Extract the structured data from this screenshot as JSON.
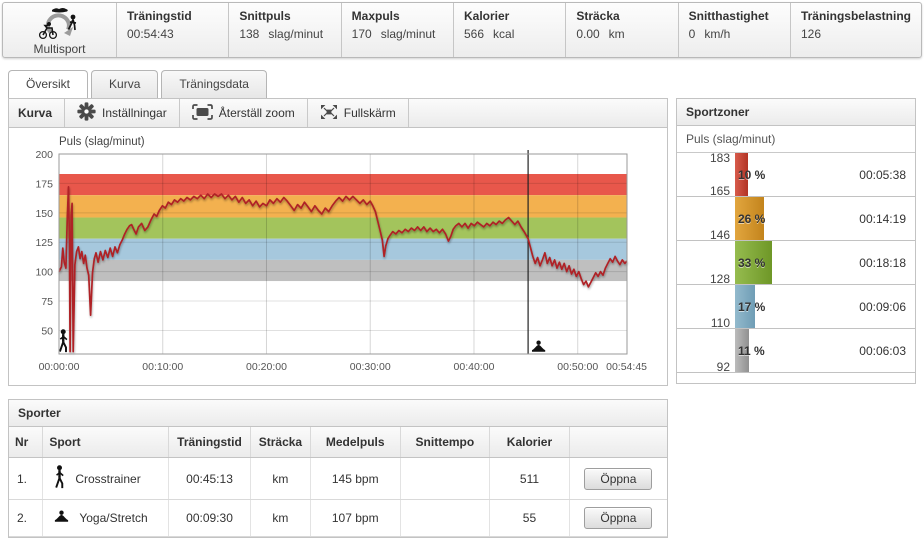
{
  "header": {
    "activity": "Multisport",
    "stats": [
      {
        "label": "Träningstid",
        "value": "00:54:43",
        "unit": ""
      },
      {
        "label": "Snittpuls",
        "value": "138",
        "unit": "slag/minut"
      },
      {
        "label": "Maxpuls",
        "value": "170",
        "unit": "slag/minut"
      },
      {
        "label": "Kalorier",
        "value": "566",
        "unit": "kcal"
      },
      {
        "label": "Sträcka",
        "value": "0.00",
        "unit": "km"
      },
      {
        "label": "Snitthastighet",
        "value": "0",
        "unit": "km/h"
      },
      {
        "label": "Träningsbelastning",
        "value": "126",
        "unit": ""
      }
    ]
  },
  "tabs": [
    {
      "label": "Översikt",
      "active": true
    },
    {
      "label": "Kurva",
      "active": false
    },
    {
      "label": "Träningsdata",
      "active": false
    }
  ],
  "curve_panel": {
    "title": "Kurva",
    "buttons": [
      {
        "label": "Inställningar",
        "icon": "gear-icon"
      },
      {
        "label": "Återställ zoom",
        "icon": "reset-zoom-icon"
      },
      {
        "label": "Fullskärm",
        "icon": "fullscreen-icon"
      }
    ]
  },
  "chart_data": {
    "type": "line",
    "title": "Puls (slag/minut)",
    "ylabel": "Puls (slag/minut)",
    "ylim": [
      30,
      200
    ],
    "yticks": [
      50,
      75,
      100,
      125,
      150,
      175,
      200
    ],
    "xlim_seconds": [
      0,
      3285
    ],
    "xticks": [
      {
        "t": 0,
        "label": "00:00:00"
      },
      {
        "t": 600,
        "label": "00:10:00"
      },
      {
        "t": 1200,
        "label": "00:20:00"
      },
      {
        "t": 1800,
        "label": "00:30:00"
      },
      {
        "t": 2400,
        "label": "00:40:00"
      },
      {
        "t": 3000,
        "label": "00:50:00"
      },
      {
        "t": 3285,
        "label": "00:54:45"
      }
    ],
    "grid": true,
    "zones": [
      {
        "from": 165,
        "to": 183,
        "color": "#E8574B"
      },
      {
        "from": 146,
        "to": 165,
        "color": "#F3B14F"
      },
      {
        "from": 128,
        "to": 146,
        "color": "#A3C45C"
      },
      {
        "from": 110,
        "to": 128,
        "color": "#A6C8DD"
      },
      {
        "from": 92,
        "to": 110,
        "color": "#BFBFBF"
      }
    ],
    "line_color": "#AF2025",
    "cursor_time": 2713,
    "sport_markers": [
      {
        "t": 10,
        "icon": "crosstrainer-icon"
      },
      {
        "t": 2713,
        "icon": "yoga-icon"
      }
    ],
    "series": [
      {
        "name": "Puls",
        "points": [
          [
            0,
            100
          ],
          [
            14,
            104
          ],
          [
            22,
            120
          ],
          [
            30,
            108
          ],
          [
            40,
            103
          ],
          [
            48,
            146
          ],
          [
            55,
            172
          ],
          [
            60,
            126
          ],
          [
            64,
            32
          ],
          [
            70,
            148
          ],
          [
            76,
            158
          ],
          [
            82,
            32
          ],
          [
            92,
            106
          ],
          [
            102,
            117
          ],
          [
            112,
            121
          ],
          [
            122,
            111
          ],
          [
            132,
            117
          ],
          [
            142,
            107
          ],
          [
            152,
            114
          ],
          [
            162,
            103
          ],
          [
            172,
            97
          ],
          [
            183,
            63
          ],
          [
            194,
            99
          ],
          [
            204,
            111
          ],
          [
            214,
            116
          ],
          [
            226,
            108
          ],
          [
            240,
            117
          ],
          [
            254,
            110
          ],
          [
            268,
            118
          ],
          [
            282,
            112
          ],
          [
            296,
            120
          ],
          [
            310,
            113
          ],
          [
            324,
            121
          ],
          [
            338,
            116
          ],
          [
            352,
            123
          ],
          [
            366,
            127
          ],
          [
            380,
            132
          ],
          [
            394,
            136
          ],
          [
            408,
            139
          ],
          [
            420,
            140
          ],
          [
            432,
            136
          ],
          [
            446,
            132
          ],
          [
            460,
            138
          ],
          [
            478,
            141
          ],
          [
            496,
            135
          ],
          [
            514,
            138
          ],
          [
            532,
            144
          ],
          [
            550,
            149
          ],
          [
            565,
            147
          ],
          [
            580,
            152
          ],
          [
            598,
            156
          ],
          [
            615,
            154
          ],
          [
            632,
            159
          ],
          [
            650,
            157
          ],
          [
            668,
            161
          ],
          [
            686,
            159
          ],
          [
            704,
            162
          ],
          [
            722,
            160
          ],
          [
            740,
            163
          ],
          [
            760,
            161
          ],
          [
            780,
            164
          ],
          [
            800,
            162
          ],
          [
            820,
            165
          ],
          [
            840,
            162
          ],
          [
            860,
            166
          ],
          [
            880,
            163
          ],
          [
            900,
            166
          ],
          [
            920,
            164
          ],
          [
            940,
            166
          ],
          [
            960,
            162
          ],
          [
            980,
            165
          ],
          [
            1000,
            161
          ],
          [
            1020,
            164
          ],
          [
            1040,
            159
          ],
          [
            1060,
            163
          ],
          [
            1080,
            158
          ],
          [
            1100,
            161
          ],
          [
            1120,
            156
          ],
          [
            1140,
            160
          ],
          [
            1160,
            155
          ],
          [
            1180,
            158
          ],
          [
            1200,
            156
          ],
          [
            1220,
            161
          ],
          [
            1240,
            158
          ],
          [
            1260,
            162
          ],
          [
            1280,
            159
          ],
          [
            1300,
            163
          ],
          [
            1320,
            160
          ],
          [
            1340,
            156
          ],
          [
            1360,
            152
          ],
          [
            1380,
            157
          ],
          [
            1400,
            154
          ],
          [
            1420,
            159
          ],
          [
            1440,
            155
          ],
          [
            1460,
            151
          ],
          [
            1480,
            156
          ],
          [
            1500,
            152
          ],
          [
            1520,
            149
          ],
          [
            1540,
            154
          ],
          [
            1560,
            151
          ],
          [
            1580,
            156
          ],
          [
            1600,
            160
          ],
          [
            1620,
            163
          ],
          [
            1640,
            160
          ],
          [
            1660,
            164
          ],
          [
            1680,
            161
          ],
          [
            1700,
            164
          ],
          [
            1720,
            161
          ],
          [
            1740,
            158
          ],
          [
            1760,
            161
          ],
          [
            1780,
            157
          ],
          [
            1800,
            160
          ],
          [
            1815,
            156
          ],
          [
            1830,
            151
          ],
          [
            1845,
            142
          ],
          [
            1858,
            134
          ],
          [
            1870,
            127
          ],
          [
            1880,
            113
          ],
          [
            1890,
            122
          ],
          [
            1902,
            128
          ],
          [
            1915,
            131
          ],
          [
            1930,
            134
          ],
          [
            1948,
            132
          ],
          [
            1966,
            135
          ],
          [
            1984,
            133
          ],
          [
            2002,
            136
          ],
          [
            2020,
            134
          ],
          [
            2038,
            137
          ],
          [
            2056,
            135
          ],
          [
            2074,
            138
          ],
          [
            2092,
            135
          ],
          [
            2110,
            138
          ],
          [
            2128,
            134
          ],
          [
            2146,
            137
          ],
          [
            2164,
            134
          ],
          [
            2182,
            136
          ],
          [
            2200,
            133
          ],
          [
            2218,
            136
          ],
          [
            2236,
            132
          ],
          [
            2252,
            126
          ],
          [
            2266,
            130
          ],
          [
            2280,
            136
          ],
          [
            2295,
            139
          ],
          [
            2312,
            141
          ],
          [
            2330,
            138
          ],
          [
            2348,
            141
          ],
          [
            2366,
            137
          ],
          [
            2384,
            141
          ],
          [
            2402,
            139
          ],
          [
            2420,
            142
          ],
          [
            2438,
            140
          ],
          [
            2456,
            138
          ],
          [
            2474,
            141
          ],
          [
            2492,
            139
          ],
          [
            2510,
            142
          ],
          [
            2528,
            140
          ],
          [
            2546,
            143
          ],
          [
            2564,
            141
          ],
          [
            2582,
            144
          ],
          [
            2600,
            146
          ],
          [
            2618,
            143
          ],
          [
            2636,
            140
          ],
          [
            2654,
            143
          ],
          [
            2672,
            138
          ],
          [
            2690,
            134
          ],
          [
            2713,
            128
          ],
          [
            2726,
            121
          ],
          [
            2740,
            113
          ],
          [
            2754,
            107
          ],
          [
            2768,
            112
          ],
          [
            2782,
            105
          ],
          [
            2796,
            110
          ],
          [
            2810,
            116
          ],
          [
            2824,
            107
          ],
          [
            2838,
            112
          ],
          [
            2852,
            105
          ],
          [
            2866,
            110
          ],
          [
            2880,
            103
          ],
          [
            2894,
            108
          ],
          [
            2908,
            102
          ],
          [
            2922,
            107
          ],
          [
            2936,
            100
          ],
          [
            2950,
            105
          ],
          [
            2964,
            98
          ],
          [
            2978,
            102
          ],
          [
            2992,
            96
          ],
          [
            3006,
            100
          ],
          [
            3020,
            94
          ],
          [
            3034,
            89
          ],
          [
            3048,
            92
          ],
          [
            3062,
            87
          ],
          [
            3076,
            91
          ],
          [
            3090,
            95
          ],
          [
            3104,
            99
          ],
          [
            3118,
            96
          ],
          [
            3132,
            100
          ],
          [
            3146,
            97
          ],
          [
            3160,
            103
          ],
          [
            3174,
            107
          ],
          [
            3188,
            111
          ],
          [
            3202,
            108
          ],
          [
            3216,
            113
          ],
          [
            3230,
            109
          ],
          [
            3244,
            106
          ],
          [
            3258,
            110
          ],
          [
            3272,
            107
          ],
          [
            3285,
            109
          ]
        ]
      }
    ]
  },
  "sportzoner": {
    "title": "Sportzoner",
    "subtitle": "Puls (slag/minut)",
    "zones": [
      {
        "upper": "183",
        "lower": "165",
        "pct": 10,
        "pct_label": "10 %",
        "time": "00:05:38",
        "color_top": "#d75b4b",
        "color_bottom": "#b23425"
      },
      {
        "upper": "",
        "lower": "146",
        "pct": 26,
        "pct_label": "26 %",
        "time": "00:14:19",
        "color_top": "#e2a63f",
        "color_bottom": "#c3841c"
      },
      {
        "upper": "",
        "lower": "128",
        "pct": 33,
        "pct_label": "33 %",
        "time": "00:18:18",
        "color_top": "#96bc4f",
        "color_bottom": "#6e9727"
      },
      {
        "upper": "",
        "lower": "110",
        "pct": 17,
        "pct_label": "17 %",
        "time": "00:09:06",
        "color_top": "#93bacd",
        "color_bottom": "#6f9db5"
      },
      {
        "upper": "",
        "lower": "92",
        "pct": 11,
        "pct_label": "11 %",
        "time": "00:06:03",
        "color_top": "#bcbcbc",
        "color_bottom": "#909090"
      }
    ]
  },
  "sporter": {
    "title": "Sporter",
    "columns": [
      "Nr",
      "Sport",
      "Träningstid",
      "Sträcka",
      "Medelpuls",
      "Snittempo",
      "Kalorier",
      ""
    ],
    "rows": [
      {
        "nr": "1.",
        "icon": "crosstrainer-icon",
        "sport": "Crosstrainer",
        "time": "00:45:13",
        "distance": "km",
        "avg_hr": "145 bpm",
        "pace": "",
        "calories": "511",
        "action": "Öppna"
      },
      {
        "nr": "2.",
        "icon": "yoga-icon",
        "sport": "Yoga/Stretch",
        "time": "00:09:30",
        "distance": "km",
        "avg_hr": "107 bpm",
        "pace": "",
        "calories": "55",
        "action": "Öppna"
      }
    ]
  }
}
